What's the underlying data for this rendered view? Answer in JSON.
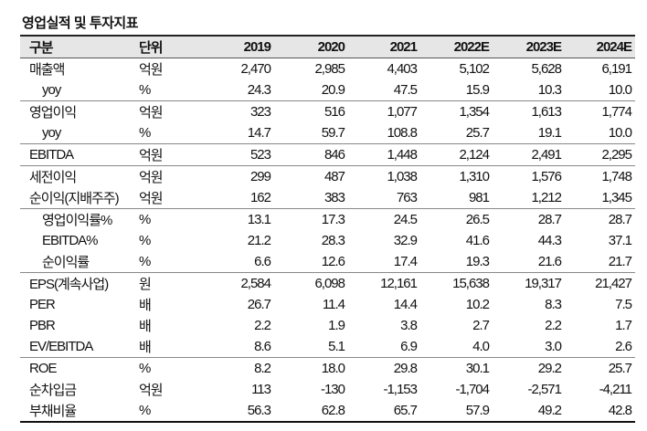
{
  "title": "영업실적 및 투자지표",
  "header": {
    "label": "구분",
    "unit": "단위",
    "years": [
      "2019",
      "2020",
      "2021",
      "2022E",
      "2023E",
      "2024E"
    ]
  },
  "groups": [
    [
      {
        "label": "매출액",
        "unit": "억원",
        "indent": false,
        "values": [
          "2,470",
          "2,985",
          "4,403",
          "5,102",
          "5,628",
          "6,191"
        ]
      },
      {
        "label": "yoy",
        "unit": "%",
        "indent": true,
        "values": [
          "24.3",
          "20.9",
          "47.5",
          "15.9",
          "10.3",
          "10.0"
        ]
      }
    ],
    [
      {
        "label": "영업이익",
        "unit": "억원",
        "indent": false,
        "values": [
          "323",
          "516",
          "1,077",
          "1,354",
          "1,613",
          "1,774"
        ]
      },
      {
        "label": "yoy",
        "unit": "%",
        "indent": true,
        "values": [
          "14.7",
          "59.7",
          "108.8",
          "25.7",
          "19.1",
          "10.0"
        ]
      }
    ],
    [
      {
        "label": "EBITDA",
        "unit": "억원",
        "indent": false,
        "values": [
          "523",
          "846",
          "1,448",
          "2,124",
          "2,491",
          "2,295"
        ]
      }
    ],
    [
      {
        "label": "세전이익",
        "unit": "억원",
        "indent": false,
        "values": [
          "299",
          "487",
          "1,038",
          "1,310",
          "1,576",
          "1,748"
        ]
      },
      {
        "label": "순이익(지배주주)",
        "unit": "억원",
        "indent": false,
        "values": [
          "162",
          "383",
          "763",
          "981",
          "1,212",
          "1,345"
        ]
      }
    ],
    [
      {
        "label": "영업이익률%",
        "unit": "%",
        "indent": true,
        "values": [
          "13.1",
          "17.3",
          "24.5",
          "26.5",
          "28.7",
          "28.7"
        ]
      },
      {
        "label": "EBITDA%",
        "unit": "%",
        "indent": true,
        "values": [
          "21.2",
          "28.3",
          "32.9",
          "41.6",
          "44.3",
          "37.1"
        ]
      },
      {
        "label": "순이익률",
        "unit": "%",
        "indent": true,
        "values": [
          "6.6",
          "12.6",
          "17.4",
          "19.3",
          "21.6",
          "21.7"
        ]
      }
    ],
    [
      {
        "label": "EPS(계속사업)",
        "unit": "원",
        "indent": false,
        "values": [
          "2,584",
          "6,098",
          "12,161",
          "15,638",
          "19,317",
          "21,427"
        ]
      },
      {
        "label": "PER",
        "unit": "배",
        "indent": false,
        "values": [
          "26.7",
          "11.4",
          "14.4",
          "10.2",
          "8.3",
          "7.5"
        ]
      },
      {
        "label": "PBR",
        "unit": "배",
        "indent": false,
        "values": [
          "2.2",
          "1.9",
          "3.8",
          "2.7",
          "2.2",
          "1.7"
        ]
      },
      {
        "label": "EV/EBITDA",
        "unit": "배",
        "indent": false,
        "values": [
          "8.6",
          "5.1",
          "6.9",
          "4.0",
          "3.0",
          "2.6"
        ]
      }
    ],
    [
      {
        "label": "ROE",
        "unit": "%",
        "indent": false,
        "values": [
          "8.2",
          "18.0",
          "29.8",
          "30.1",
          "29.2",
          "25.7"
        ]
      },
      {
        "label": "순차입금",
        "unit": "억원",
        "indent": false,
        "values": [
          "113",
          "-130",
          "-1,153",
          "-1,704",
          "-2,571",
          "-4,211"
        ]
      },
      {
        "label": "부채비율",
        "unit": "%",
        "indent": false,
        "values": [
          "56.3",
          "62.8",
          "65.7",
          "57.9",
          "49.2",
          "42.8"
        ]
      }
    ]
  ]
}
